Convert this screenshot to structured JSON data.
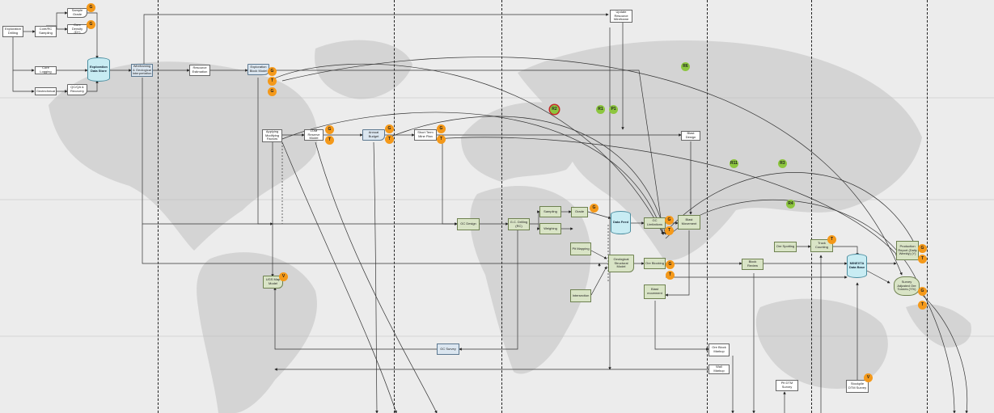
{
  "boxes": {
    "exploration_drilling": "Exploration Drilling",
    "core_rc_sampling": "Core/RC Sampling",
    "sample_grade": "Sample Grade",
    "core_density": "Core Density (D+)",
    "core_logging": "Core Logging",
    "geotechnical": "Geotechnical",
    "qaqc": "QC/QA & Recovery",
    "exploration_data_store": "Exploration Data Store",
    "wireframing": "Wireframing & Geological Interpretation",
    "resource_estimation": "Resource Estimation",
    "exploration_block_model": "Exploration Block Model",
    "update_resource_wireframe": "Update Resource Wireframe",
    "applying_modifying_factors": "Applying Modifying Factors",
    "lom_reserve_model": "LOM Reserve Model",
    "annual_budget": "Annual Budget",
    "short_term_mine_plan": "Short Term Mine Plan",
    "blast_design": "Blast Design",
    "gc_design": "GC Design",
    "gc_drilling": "G.C. Drilling (RC)",
    "sampling": "Sampling",
    "grade": "Grade",
    "weighing": "Weighing",
    "data_feed": "Data Feed",
    "gc_limitations": "GC Limitations",
    "blast_movement": "Blast Movement",
    "ore_spotting": "Ore Spotting",
    "truck_counting": "Truck Counting",
    "mine_data_base": "MINEXTA Data Base",
    "production_report": "Production Report (Daily Weekly) (Y)",
    "survey_adjusted": "Survey Adjusted Ore Tonnes (Y%)",
    "pit_mapping": "Pit Mapping",
    "geological_structural_model": "Geological Structural Model",
    "intersection": "Intersection",
    "ore_blocking": "Ore Blocking",
    "block_review": "Block Review",
    "blast_movement_2": "Blast movement",
    "ugs_map_model": "UGS Map Model",
    "gc_survey": "GC Survey",
    "ore_block_markup": "Ore Block Markup",
    "wall_markup": "Wall Markup",
    "pit_dtm_survey": "Pit DTM Survey",
    "stockpile_dtm_survey": "Stockpile DTM Survey"
  },
  "badges": [
    {
      "id": "b1",
      "text": "G",
      "color": "orange"
    },
    {
      "id": "b2",
      "text": "G",
      "color": "orange"
    },
    {
      "id": "b3",
      "text": "G",
      "color": "orange"
    },
    {
      "id": "b4",
      "text": "T",
      "color": "orange"
    },
    {
      "id": "b5",
      "text": "G",
      "color": "orange"
    },
    {
      "id": "b6",
      "text": "G",
      "color": "orange"
    },
    {
      "id": "b7",
      "text": "T",
      "color": "orange"
    },
    {
      "id": "b8",
      "text": "G",
      "color": "orange"
    },
    {
      "id": "b9",
      "text": "T",
      "color": "orange"
    },
    {
      "id": "b10",
      "text": "G",
      "color": "orange"
    },
    {
      "id": "b11",
      "text": "T",
      "color": "orange"
    },
    {
      "id": "b12",
      "text": "G",
      "color": "orange"
    },
    {
      "id": "b13",
      "text": "G",
      "color": "orange"
    },
    {
      "id": "b14",
      "text": "T",
      "color": "orange"
    },
    {
      "id": "b15",
      "text": "G",
      "color": "orange"
    },
    {
      "id": "b16",
      "text": "T",
      "color": "orange"
    },
    {
      "id": "b17",
      "text": "T",
      "color": "orange"
    },
    {
      "id": "b18",
      "text": "G",
      "color": "orange"
    },
    {
      "id": "b19",
      "text": "T",
      "color": "orange"
    },
    {
      "id": "b20",
      "text": "V",
      "color": "orange"
    },
    {
      "id": "b21",
      "text": "V",
      "color": "orange"
    },
    {
      "id": "b22",
      "text": "R6",
      "color": "green"
    },
    {
      "id": "b23",
      "text": "R2",
      "color": "green-red"
    },
    {
      "id": "b24",
      "text": "R1",
      "color": "green"
    },
    {
      "id": "b25",
      "text": "P1",
      "color": "green"
    },
    {
      "id": "b26",
      "text": "R11",
      "color": "green"
    },
    {
      "id": "b27",
      "text": "R3",
      "color": "green"
    },
    {
      "id": "b28",
      "text": "R4",
      "color": "green"
    },
    {
      "id": "b29",
      "text": "G",
      "color": "orange"
    },
    {
      "id": "b30",
      "text": "T",
      "color": "orange"
    },
    {
      "id": "b31",
      "text": "G",
      "color": "orange"
    },
    {
      "id": "b32",
      "text": "T",
      "color": "orange"
    }
  ],
  "colors": {
    "orange": "#f4991a",
    "green": "#8dc63f",
    "red": "#c62828",
    "map_land": "#d5d5d5",
    "background": "#ececec"
  }
}
